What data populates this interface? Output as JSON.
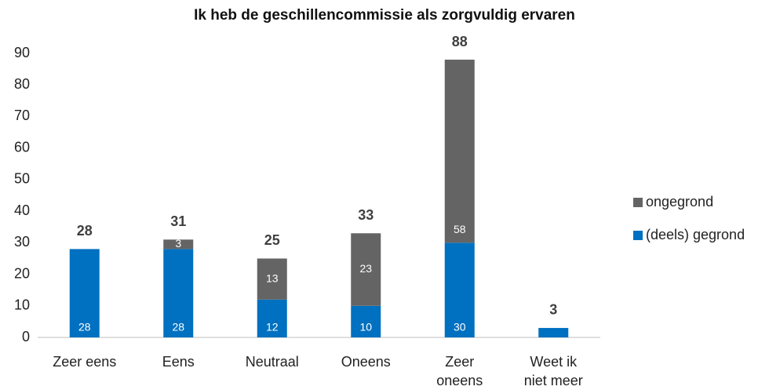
{
  "chart_data": {
    "type": "stacked-bar",
    "title": "Ik heb de geschillencommissie als zorgvuldig ervaren",
    "categories": [
      "Zeer eens",
      "Eens",
      "Neutraal",
      "Oneens",
      "Zeer oneens",
      "Weet ik niet meer"
    ],
    "series": [
      {
        "name": "(deels) gegrond",
        "color": "#0070c0",
        "values": [
          28,
          28,
          12,
          10,
          30,
          3
        ],
        "value_labels": [
          "28",
          "28",
          "12",
          "10",
          "30",
          null
        ]
      },
      {
        "name": "ongegrond",
        "color": "#646464",
        "values": [
          null,
          3,
          13,
          23,
          58,
          null
        ],
        "value_labels": [
          null,
          "3",
          "13",
          "23",
          "58",
          null
        ]
      }
    ],
    "totals": [
      28,
      31,
      25,
      33,
      88,
      3
    ],
    "ylim": [
      0,
      90
    ],
    "yticks": [
      0,
      10,
      20,
      30,
      40,
      50,
      60,
      70,
      80,
      90
    ],
    "legend": "right"
  }
}
